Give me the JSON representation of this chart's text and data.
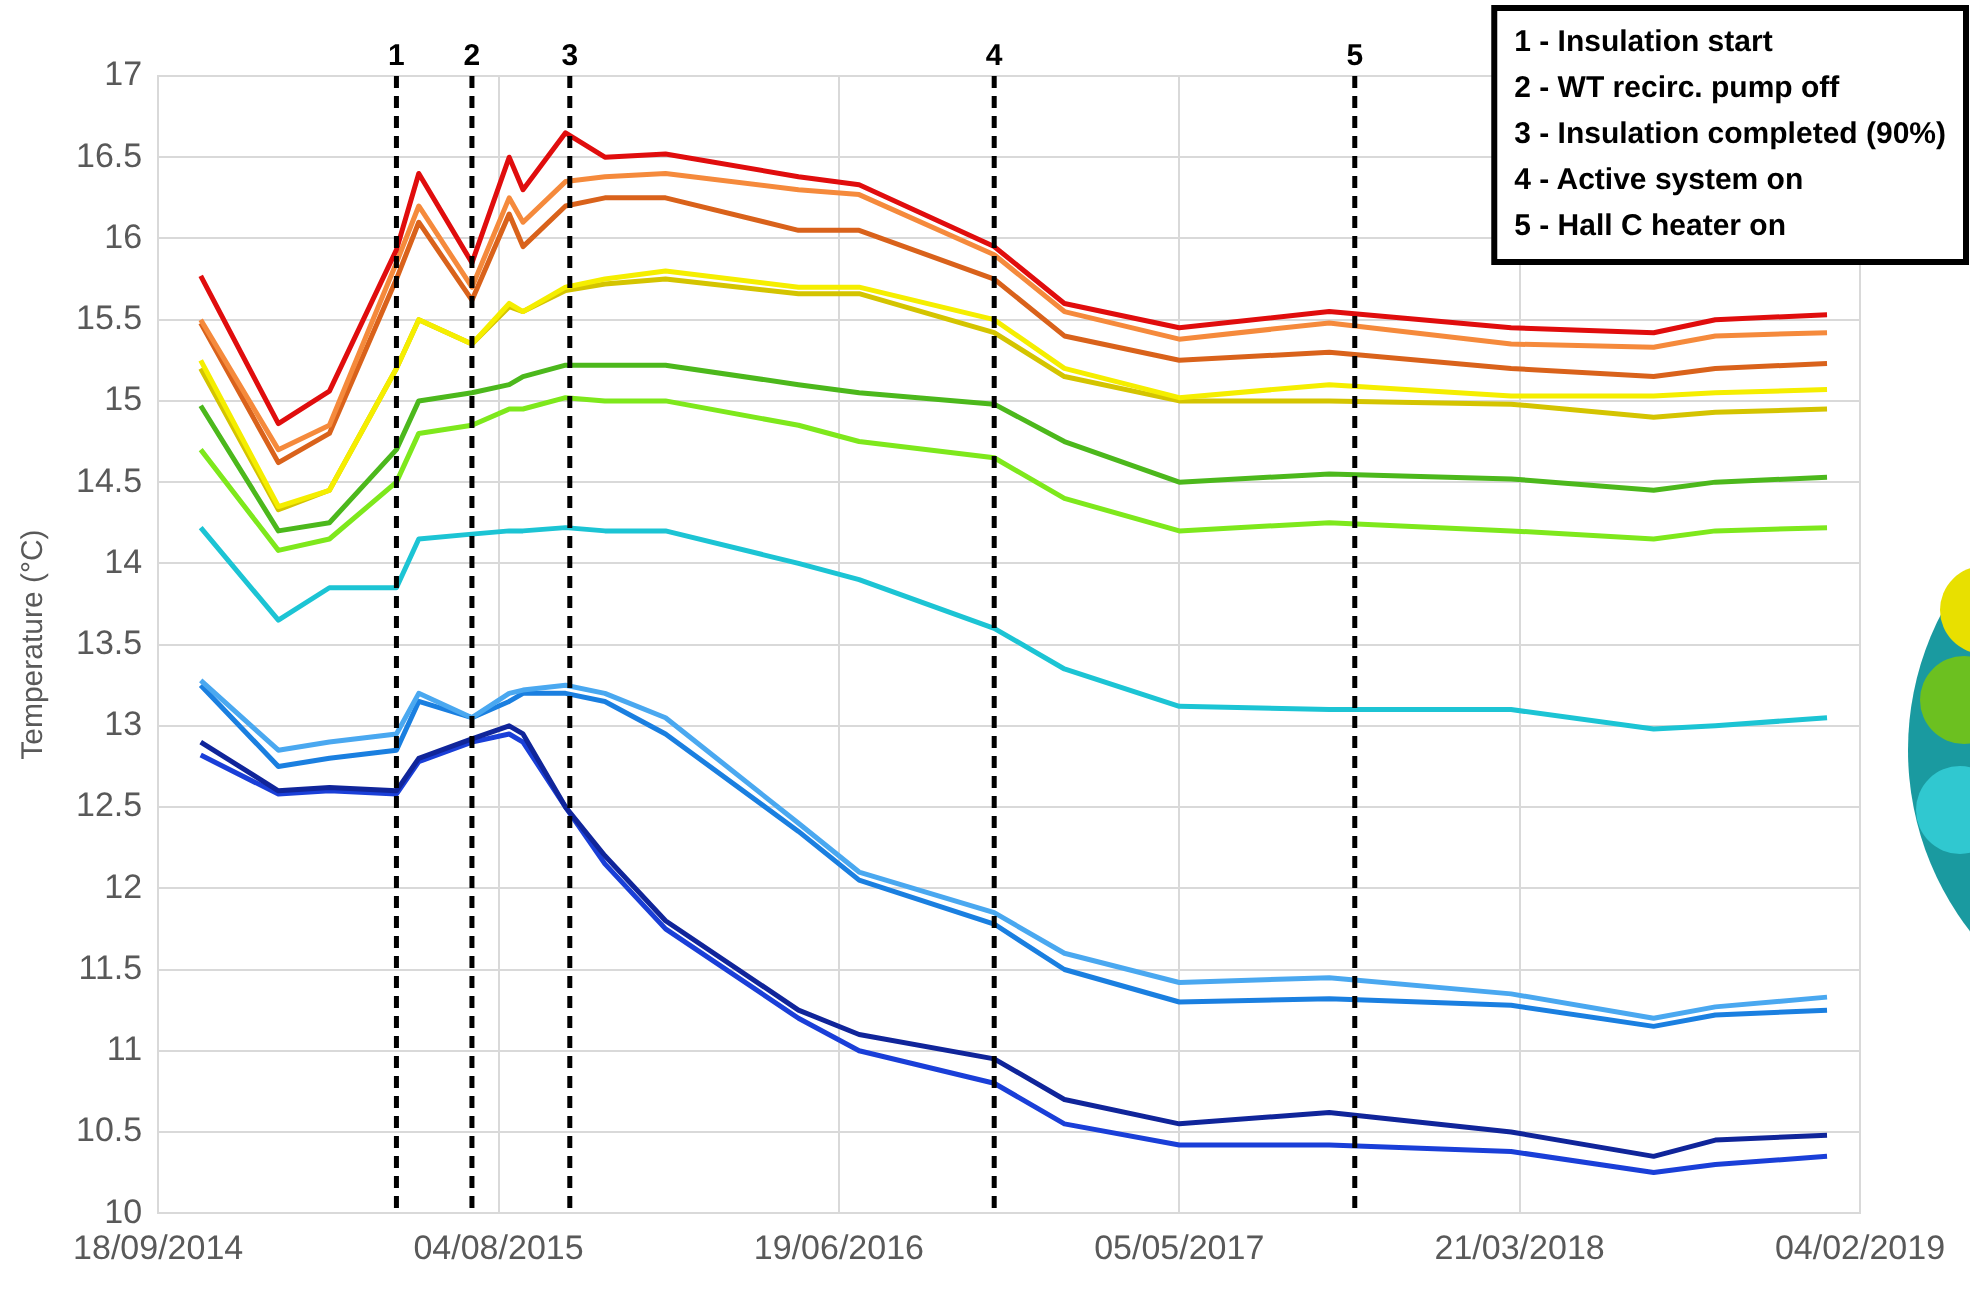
{
  "chart_data": {
    "type": "line",
    "ylabel": "Temperature (°C)",
    "x": [
      "2014-10-28",
      "2015-01-09",
      "2015-02-26",
      "2015-04-30",
      "2015-05-21",
      "2015-07-10",
      "2015-08-14",
      "2015-08-27",
      "2015-10-06",
      "2015-11-12",
      "2016-01-08",
      "2016-05-12",
      "2016-07-08",
      "2016-11-12",
      "2017-01-17",
      "2017-05-05",
      "2017-09-23",
      "2018-03-13",
      "2018-07-25",
      "2018-09-21",
      "2019-01-04"
    ],
    "series": [
      {
        "color": "#e00d0d",
        "values": [
          15.77,
          14.86,
          15.06,
          15.93,
          16.4,
          15.85,
          16.5,
          16.3,
          16.65,
          16.5,
          16.52,
          16.38,
          16.33,
          15.95,
          15.6,
          15.45,
          15.55,
          15.45,
          15.42,
          15.5,
          15.53
        ]
      },
      {
        "color": "#f58a3c",
        "values": [
          15.5,
          14.7,
          14.85,
          15.85,
          16.2,
          15.7,
          16.25,
          16.1,
          16.35,
          16.38,
          16.4,
          16.3,
          16.27,
          15.9,
          15.55,
          15.38,
          15.48,
          15.35,
          15.33,
          15.4,
          15.42
        ]
      },
      {
        "color": "#d9621b",
        "values": [
          15.48,
          14.62,
          14.8,
          15.75,
          16.1,
          15.62,
          16.15,
          15.95,
          16.2,
          16.25,
          16.25,
          16.05,
          16.05,
          15.75,
          15.4,
          15.25,
          15.3,
          15.2,
          15.15,
          15.2,
          15.23
        ]
      },
      {
        "color": "#f5ee00",
        "values": [
          15.25,
          14.35,
          14.45,
          15.2,
          15.5,
          15.35,
          15.6,
          15.55,
          15.7,
          15.75,
          15.8,
          15.7,
          15.7,
          15.5,
          15.2,
          15.02,
          15.1,
          15.03,
          15.03,
          15.05,
          15.07
        ]
      },
      {
        "color": "#d4c400",
        "values": [
          15.2,
          14.33,
          14.45,
          15.2,
          15.5,
          15.35,
          15.58,
          15.55,
          15.68,
          15.72,
          15.75,
          15.66,
          15.66,
          15.42,
          15.15,
          15.0,
          15.0,
          14.98,
          14.9,
          14.93,
          14.95
        ]
      },
      {
        "color": "#4cb81c",
        "values": [
          14.97,
          14.2,
          14.25,
          14.7,
          15.0,
          15.05,
          15.1,
          15.15,
          15.22,
          15.22,
          15.22,
          15.1,
          15.05,
          14.98,
          14.75,
          14.5,
          14.55,
          14.52,
          14.45,
          14.5,
          14.53
        ]
      },
      {
        "color": "#7ee81c",
        "values": [
          14.7,
          14.08,
          14.15,
          14.5,
          14.8,
          14.85,
          14.95,
          14.95,
          15.02,
          15.0,
          15.0,
          14.85,
          14.75,
          14.65,
          14.4,
          14.2,
          14.25,
          14.2,
          14.15,
          14.2,
          14.22
        ]
      },
      {
        "color": "#1cc4d4",
        "values": [
          14.22,
          13.65,
          13.85,
          13.85,
          14.15,
          14.18,
          14.2,
          14.2,
          14.22,
          14.2,
          14.2,
          14.0,
          13.9,
          13.6,
          13.35,
          13.12,
          13.1,
          13.1,
          12.98,
          13.0,
          13.05
        ]
      },
      {
        "color": "#4aa8f0",
        "values": [
          13.28,
          12.85,
          12.9,
          12.95,
          13.2,
          13.05,
          13.2,
          13.22,
          13.25,
          13.2,
          13.05,
          12.4,
          12.1,
          11.85,
          11.6,
          11.42,
          11.45,
          11.35,
          11.2,
          11.27,
          11.33
        ]
      },
      {
        "color": "#1a7fe0",
        "values": [
          13.25,
          12.75,
          12.8,
          12.85,
          13.15,
          13.05,
          13.15,
          13.2,
          13.2,
          13.15,
          12.95,
          12.35,
          12.05,
          11.78,
          11.5,
          11.3,
          11.32,
          11.28,
          11.15,
          11.22,
          11.25
        ]
      },
      {
        "color": "#10259a",
        "values": [
          12.9,
          12.6,
          12.62,
          12.6,
          12.8,
          12.92,
          13.0,
          12.95,
          12.5,
          12.2,
          11.8,
          11.25,
          11.1,
          10.95,
          10.7,
          10.55,
          10.62,
          10.5,
          10.35,
          10.45,
          10.48
        ]
      },
      {
        "color": "#1a3fd8",
        "values": [
          12.82,
          12.58,
          12.6,
          12.58,
          12.78,
          12.9,
          12.95,
          12.9,
          12.5,
          12.15,
          11.75,
          11.2,
          11.0,
          10.8,
          10.55,
          10.42,
          10.42,
          10.38,
          10.25,
          10.3,
          10.35
        ]
      }
    ],
    "xlim": [
      "2014-09-18",
      "2019-02-04"
    ],
    "xticks": [
      {
        "value": "2014-09-18",
        "label": "18/09/2014"
      },
      {
        "value": "2015-08-04",
        "label": "04/08/2015"
      },
      {
        "value": "2016-06-19",
        "label": "19/06/2016"
      },
      {
        "value": "2017-05-05",
        "label": "05/05/2017"
      },
      {
        "value": "2018-03-21",
        "label": "21/03/2018"
      },
      {
        "value": "2019-02-04",
        "label": "04/02/2019"
      }
    ],
    "ylim": [
      10,
      17
    ],
    "yticks": [
      10,
      10.5,
      11,
      11.5,
      12,
      12.5,
      13,
      13.5,
      14,
      14.5,
      15,
      15.5,
      16,
      16.5,
      17
    ],
    "ref_lines": [
      {
        "axis": "x",
        "value": "2015-04-30",
        "label": "1",
        "color": "#000000",
        "line_style": "dashed"
      },
      {
        "axis": "x",
        "value": "2015-07-10",
        "label": "2",
        "color": "#000000",
        "line_style": "dashed"
      },
      {
        "axis": "x",
        "value": "2015-10-10",
        "label": "3",
        "color": "#000000",
        "line_style": "dashed"
      },
      {
        "axis": "x",
        "value": "2016-11-12",
        "label": "4",
        "color": "#000000",
        "line_style": "dashed"
      },
      {
        "axis": "x",
        "value": "2017-10-17",
        "label": "5",
        "color": "#000000",
        "line_style": "dashed"
      }
    ],
    "annotations": [
      "1 - Insulation start",
      "2 - WT recirc. pump off",
      "3 - Insulation completed (90%)",
      "4 - Active system on",
      "5 - Hall C heater on"
    ],
    "grid": true,
    "legend": false,
    "marker": "none",
    "line_style": "solid"
  }
}
